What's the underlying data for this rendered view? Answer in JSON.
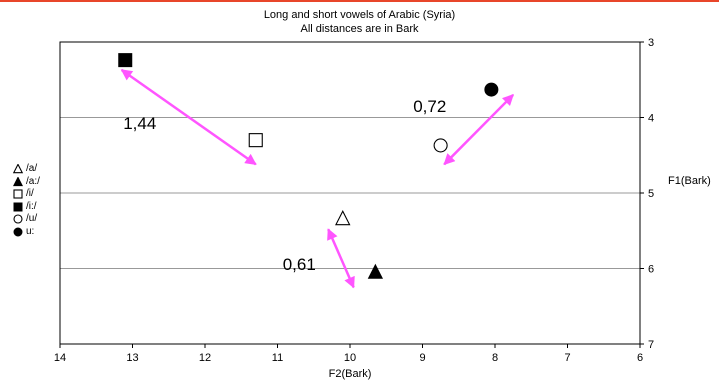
{
  "chart_data": {
    "type": "scatter",
    "title": "Long and short vowels of Arabic (Syria)",
    "subtitle": "All distances are in Bark",
    "xlabel": "F2(Bark)",
    "ylabel": "F1(Bark)",
    "xlim": [
      14,
      6
    ],
    "ylim": [
      3,
      7
    ],
    "x_axis_reversed": true,
    "y_axis_reversed": true,
    "y_axis_position": "right",
    "x_ticks": [
      "14",
      "13",
      "12",
      "11",
      "10",
      "9",
      "8",
      "7",
      "6"
    ],
    "y_ticks": [
      "3",
      "4",
      "5",
      "6",
      "7"
    ],
    "grid": "horizontal",
    "legend_position": "left",
    "series": [
      {
        "name": "/a/",
        "marker": "open-triangle",
        "x": 10.1,
        "y": 5.34
      },
      {
        "name": "/a:/",
        "marker": "filled-triangle",
        "x": 9.65,
        "y": 6.05
      },
      {
        "name": "/i/",
        "marker": "open-square",
        "x": 11.3,
        "y": 4.3
      },
      {
        "name": "/i:/",
        "marker": "filled-square",
        "x": 13.1,
        "y": 3.24
      },
      {
        "name": "/u/",
        "marker": "open-circle",
        "x": 8.75,
        "y": 4.37
      },
      {
        "name": "u:",
        "marker": "filled-circle",
        "x": 8.05,
        "y": 3.63
      }
    ],
    "annotations": [
      {
        "label": "1,44",
        "from": [
          13.15,
          3.37
        ],
        "to": [
          11.3,
          4.62
        ],
        "label_at": [
          12.9,
          4.15
        ]
      },
      {
        "label": "0,72",
        "from": [
          7.75,
          3.7
        ],
        "to": [
          8.7,
          4.62
        ],
        "label_at": [
          8.9,
          3.93
        ]
      },
      {
        "label": "0,61",
        "from": [
          10.3,
          5.48
        ],
        "to": [
          9.95,
          6.25
        ],
        "label_at": [
          10.7,
          6.02
        ]
      }
    ],
    "colors": {
      "arrow": "#ff55ff",
      "grid": "#999999",
      "axis": "#000000"
    }
  }
}
